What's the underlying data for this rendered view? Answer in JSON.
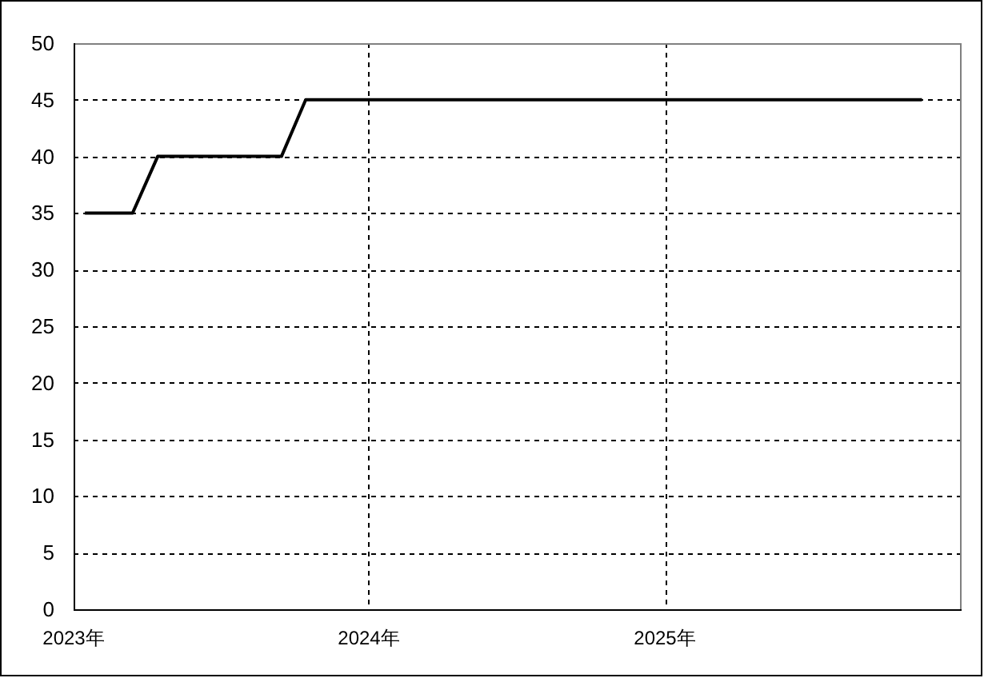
{
  "chart_data": {
    "type": "line",
    "x": [
      "2023-01-15",
      "2023-02-15",
      "2023-03-15",
      "2023-04-15",
      "2023-05-15",
      "2023-06-15",
      "2023-07-15",
      "2023-08-15",
      "2023-09-15",
      "2023-10-15",
      "2023-11-15",
      "2023-12-15",
      "2024-01-15",
      "2024-02-15",
      "2024-03-15",
      "2024-04-15",
      "2024-05-15",
      "2024-06-15",
      "2024-07-15",
      "2024-08-15",
      "2024-09-15",
      "2024-10-15",
      "2024-11-15",
      "2024-12-15",
      "2025-01-15",
      "2025-02-15",
      "2025-03-15",
      "2025-04-15",
      "2025-05-15",
      "2025-06-15",
      "2025-07-15",
      "2025-08-15",
      "2025-09-15",
      "2025-10-15",
      "2025-11-15"
    ],
    "series": [
      {
        "color": "#000000",
        "values": [
          35,
          35,
          35,
          40,
          40,
          40,
          40,
          40,
          40,
          45,
          45,
          45,
          45,
          45,
          45,
          45,
          45,
          45,
          45,
          45,
          45,
          45,
          45,
          45,
          45,
          45,
          45,
          45,
          45,
          45,
          45,
          45,
          45,
          45,
          45
        ]
      }
    ],
    "xlim": [
      "2023-01-01",
      "2026-01-01"
    ],
    "xticks": [
      {
        "value": "2023-01-01",
        "label": "2023年"
      },
      {
        "value": "2024-01-01",
        "label": "2024年"
      },
      {
        "value": "2025-01-01",
        "label": "2025年"
      }
    ],
    "ylim": [
      0,
      50
    ],
    "yticks": [
      0,
      5,
      10,
      15,
      20,
      25,
      30,
      35,
      40,
      45,
      50
    ],
    "grid": true,
    "line_style": "solid"
  }
}
